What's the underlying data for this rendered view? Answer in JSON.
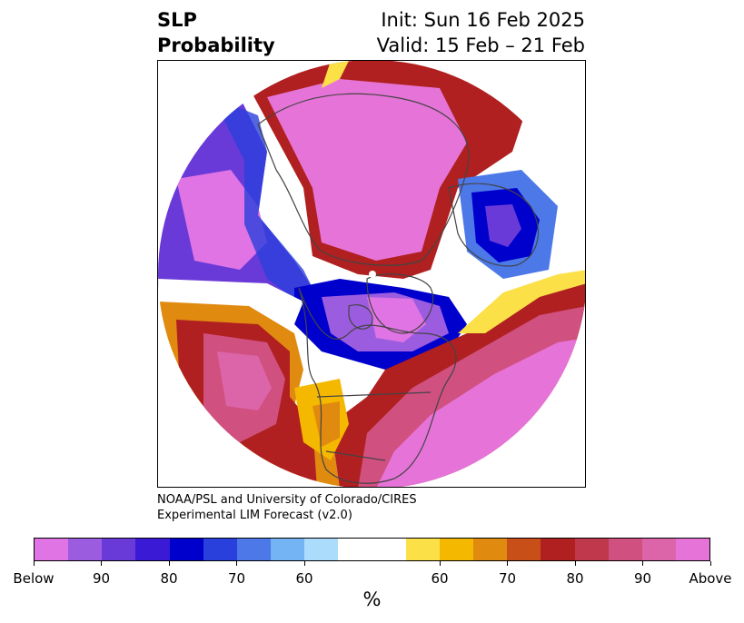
{
  "title": {
    "left_line1": "SLP",
    "left_line2": "Probability",
    "right_line1": "Init: Sun 16 Feb 2025",
    "right_line2": "Valid: 15 Feb – 21 Feb"
  },
  "credit": {
    "line1": "NOAA/PSL and University of Colorado/CIRES",
    "line2": "Experimental LIM Forecast (v2.0)"
  },
  "colorbar": {
    "colors": [
      "#e074e4",
      "#9c5ce0",
      "#6a3ad8",
      "#3a1ad4",
      "#0000cc",
      "#2a40dc",
      "#4c78e8",
      "#74b4f4",
      "#acdcfc",
      "#ffffff",
      "#ffffff",
      "#fce048",
      "#f4b800",
      "#e08a10",
      "#c85018",
      "#b02020",
      "#c0384c",
      "#d05080",
      "#dc64a8",
      "#e674d8"
    ],
    "tick_labels": [
      "Below",
      "90",
      "80",
      "70",
      "60",
      "60",
      "70",
      "80",
      "90",
      "Above"
    ],
    "unit": "%"
  },
  "map": {
    "projection": "north-polar-stereographic",
    "colors": {
      "above_strong": "#e674d8",
      "above_mid": "#d05080",
      "above_low": "#b02020",
      "above_weak": "#e08a10",
      "above_faint": "#fce048",
      "below_strong": "#9c5ce0",
      "below_mid": "#0000cc",
      "below_low": "#4c78e8",
      "below_faint": "#acdcfc",
      "border": "#444444"
    }
  }
}
